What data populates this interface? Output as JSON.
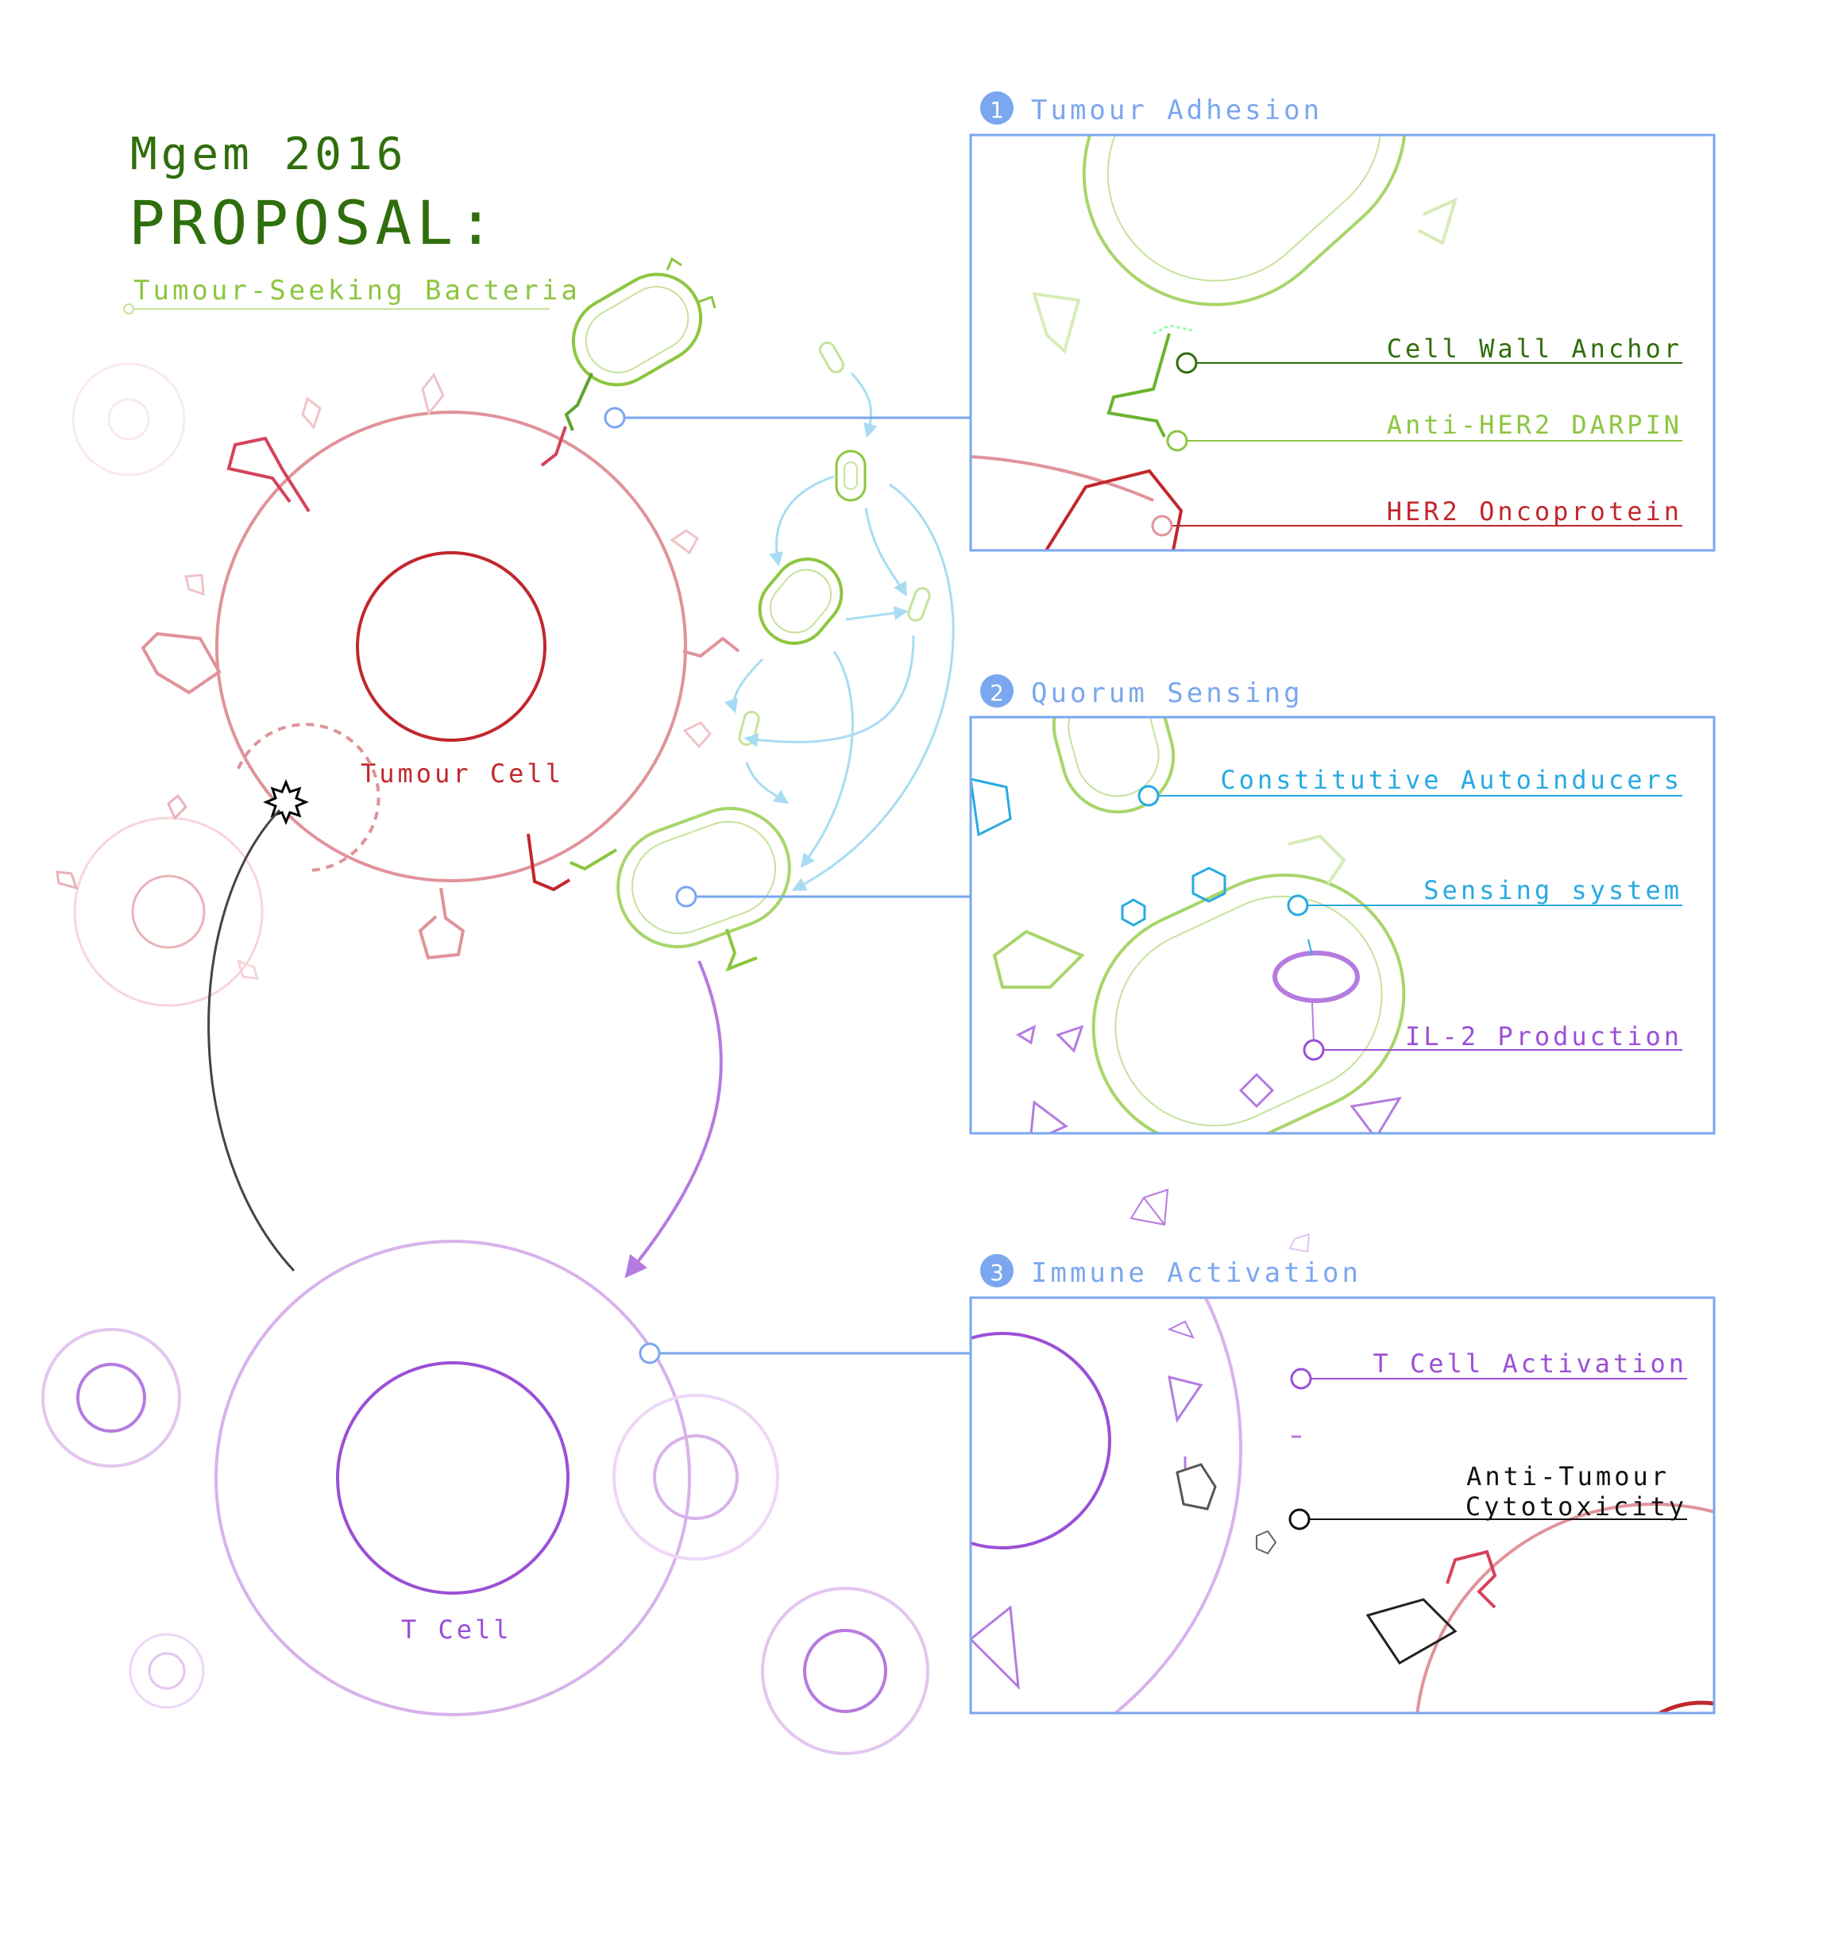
{
  "header": {
    "line1": "Mgem 2016",
    "line2": "PROPOSAL:",
    "subtitle": "Tumour-Seeking Bacteria"
  },
  "cells": {
    "tumour": "Tumour Cell",
    "tcell": "T Cell"
  },
  "panels": [
    {
      "number": "1",
      "title": "Tumour Adhesion",
      "labels": [
        "Cell Wall Anchor",
        "Anti-HER2 DARPIN",
        "HER2 Oncoprotein"
      ]
    },
    {
      "number": "2",
      "title": "Quorum Sensing",
      "labels": [
        "Constitutive Autoinducers",
        "Sensing system",
        "IL-2 Production"
      ]
    },
    {
      "number": "3",
      "title": "Immune Activation",
      "labels": [
        "T Cell Activation",
        "Anti-Tumour",
        "Cytotoxicity"
      ]
    }
  ],
  "colors": {
    "darkGreen": "#2f6e0c",
    "green": "#8cc63f",
    "lightGreen": "#c5e39a",
    "tumourRed": "#c1272d",
    "tumourPink": "#e0939a",
    "purple": "#9b4fd6",
    "lightPurple": "#d8b2ec",
    "blue": "#7aa7ef",
    "cyan": "#27aae1",
    "lightCyan": "#a8dcf3"
  }
}
